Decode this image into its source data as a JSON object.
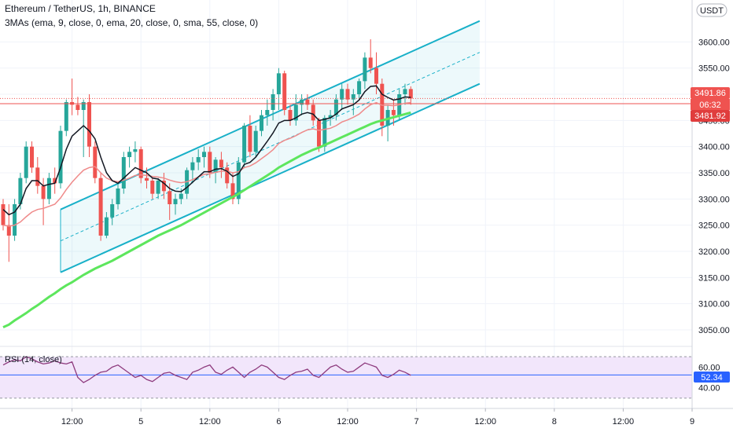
{
  "header": {
    "title": "Ethereum / TetherUS, 1h, BINANCE",
    "indicator": "3MAs (ema, 9, close, 0, ema, 20, close, 0, sma, 55, close, 0)"
  },
  "rsi_panel": {
    "label": "RSI (14, close)",
    "current_value": "52.34"
  },
  "price_badges": {
    "last_price": "3491.86",
    "countdown": "06:32",
    "ref_price": "3481.92",
    "currency": "USDT"
  },
  "colors": {
    "up": "#26a69a",
    "down": "#ef5350",
    "ema9": "#131722",
    "ema20": "#ef8a8a",
    "sma55": "#5de65d",
    "channel": "#18b0c8",
    "rsi_line": "#8e3b7e",
    "rsi_band": "#f2e6fb"
  },
  "chart_data": {
    "type": "candlestick",
    "ylim": [
      3020,
      3680
    ],
    "price_ticks": [
      3050,
      3100,
      3150,
      3200,
      3250,
      3300,
      3350,
      3400,
      3450,
      3500,
      3550,
      3600
    ],
    "price_tick_labels": [
      "3050.00",
      "3100.00",
      "3150.00",
      "3200.00",
      "3250.00",
      "3300.00",
      "3350.00",
      "3400.00",
      "3450.00",
      "3500.00",
      "3550.00",
      "3600.00"
    ],
    "time_labels": [
      {
        "label": "12:00",
        "candle": 12
      },
      {
        "label": "5",
        "candle": 24
      },
      {
        "label": "12:00",
        "candle": 36
      },
      {
        "label": "6",
        "candle": 48
      },
      {
        "label": "12:00",
        "candle": 60
      },
      {
        "label": "7",
        "candle": 72
      },
      {
        "label": "12:00",
        "candle": 84
      },
      {
        "label": "8",
        "candle": 96
      },
      {
        "label": "12:00",
        "candle": 108
      },
      {
        "label": "9",
        "candle": 120
      }
    ],
    "last_price": 3491.86,
    "ref_price": 3481.92,
    "candles": [
      [
        3290,
        3300,
        3240,
        3250
      ],
      [
        3250,
        3290,
        3180,
        3230
      ],
      [
        3230,
        3300,
        3220,
        3290
      ],
      [
        3290,
        3350,
        3280,
        3340
      ],
      [
        3340,
        3410,
        3330,
        3400
      ],
      [
        3400,
        3410,
        3350,
        3360
      ],
      [
        3360,
        3380,
        3310,
        3325
      ],
      [
        3325,
        3340,
        3250,
        3300
      ],
      [
        3300,
        3350,
        3290,
        3340
      ],
      [
        3340,
        3360,
        3310,
        3330
      ],
      [
        3330,
        3440,
        3320,
        3430
      ],
      [
        3430,
        3490,
        3420,
        3485
      ],
      [
        3485,
        3530,
        3460,
        3480
      ],
      [
        3480,
        3495,
        3460,
        3470
      ],
      [
        3470,
        3490,
        3380,
        3485
      ],
      [
        3485,
        3500,
        3380,
        3400
      ],
      [
        3400,
        3410,
        3330,
        3340
      ],
      [
        3340,
        3350,
        3220,
        3230
      ],
      [
        3230,
        3275,
        3225,
        3265
      ],
      [
        3265,
        3300,
        3250,
        3290
      ],
      [
        3290,
        3330,
        3280,
        3320
      ],
      [
        3320,
        3390,
        3310,
        3380
      ],
      [
        3380,
        3400,
        3360,
        3390
      ],
      [
        3390,
        3410,
        3370,
        3395
      ],
      [
        3395,
        3400,
        3330,
        3340
      ],
      [
        3340,
        3360,
        3320,
        3335
      ],
      [
        3335,
        3340,
        3300,
        3310
      ],
      [
        3310,
        3340,
        3300,
        3335
      ],
      [
        3335,
        3350,
        3300,
        3315
      ],
      [
        3315,
        3330,
        3260,
        3290
      ],
      [
        3290,
        3310,
        3270,
        3300
      ],
      [
        3300,
        3320,
        3290,
        3310
      ],
      [
        3310,
        3360,
        3300,
        3355
      ],
      [
        3355,
        3380,
        3330,
        3370
      ],
      [
        3370,
        3395,
        3355,
        3380
      ],
      [
        3380,
        3400,
        3360,
        3390
      ],
      [
        3390,
        3400,
        3340,
        3350
      ],
      [
        3350,
        3380,
        3330,
        3375
      ],
      [
        3375,
        3390,
        3340,
        3360
      ],
      [
        3360,
        3370,
        3320,
        3330
      ],
      [
        3330,
        3350,
        3290,
        3300
      ],
      [
        3300,
        3380,
        3290,
        3370
      ],
      [
        3370,
        3445,
        3360,
        3440
      ],
      [
        3440,
        3460,
        3380,
        3390
      ],
      [
        3390,
        3440,
        3380,
        3430
      ],
      [
        3430,
        3470,
        3420,
        3460
      ],
      [
        3460,
        3490,
        3440,
        3470
      ],
      [
        3470,
        3510,
        3450,
        3500
      ],
      [
        3500,
        3550,
        3470,
        3540
      ],
      [
        3540,
        3545,
        3460,
        3470
      ],
      [
        3470,
        3480,
        3440,
        3450
      ],
      [
        3450,
        3500,
        3440,
        3480
      ],
      [
        3480,
        3500,
        3460,
        3490
      ],
      [
        3490,
        3500,
        3470,
        3480
      ],
      [
        3480,
        3490,
        3440,
        3450
      ],
      [
        3450,
        3455,
        3390,
        3400
      ],
      [
        3400,
        3460,
        3390,
        3455
      ],
      [
        3455,
        3470,
        3440,
        3460
      ],
      [
        3460,
        3500,
        3450,
        3490
      ],
      [
        3490,
        3520,
        3470,
        3510
      ],
      [
        3510,
        3520,
        3480,
        3490
      ],
      [
        3490,
        3510,
        3460,
        3500
      ],
      [
        3500,
        3530,
        3490,
        3525
      ],
      [
        3525,
        3580,
        3510,
        3570
      ],
      [
        3570,
        3605,
        3540,
        3550
      ],
      [
        3550,
        3580,
        3500,
        3520
      ],
      [
        3520,
        3530,
        3420,
        3440
      ],
      [
        3440,
        3480,
        3410,
        3470
      ],
      [
        3470,
        3490,
        3440,
        3460
      ],
      [
        3460,
        3510,
        3450,
        3500
      ],
      [
        3500,
        3520,
        3480,
        3510
      ],
      [
        3510,
        3515,
        3480,
        3492
      ]
    ],
    "ema9": [
      3280,
      3270,
      3275,
      3290,
      3320,
      3335,
      3335,
      3325,
      3328,
      3330,
      3360,
      3395,
      3420,
      3430,
      3440,
      3430,
      3415,
      3380,
      3350,
      3335,
      3330,
      3340,
      3350,
      3360,
      3355,
      3350,
      3340,
      3338,
      3330,
      3320,
      3315,
      3314,
      3322,
      3332,
      3342,
      3352,
      3352,
      3357,
      3358,
      3353,
      3343,
      3348,
      3366,
      3370,
      3380,
      3395,
      3410,
      3426,
      3445,
      3450,
      3450,
      3455,
      3462,
      3465,
      3462,
      3450,
      3452,
      3455,
      3462,
      3472,
      3476,
      3480,
      3489,
      3505,
      3515,
      3516,
      3500,
      3494,
      3489,
      3491,
      3495,
      3494
    ],
    "ema20": [
      3250,
      3248,
      3250,
      3256,
      3266,
      3275,
      3280,
      3282,
      3286,
      3290,
      3302,
      3318,
      3332,
      3344,
      3355,
      3360,
      3362,
      3350,
      3340,
      3335,
      3333,
      3336,
      3340,
      3345,
      3346,
      3345,
      3343,
      3342,
      3340,
      3336,
      3333,
      3331,
      3333,
      3337,
      3342,
      3347,
      3348,
      3351,
      3353,
      3353,
      3350,
      3352,
      3360,
      3363,
      3369,
      3377,
      3385,
      3394,
      3406,
      3412,
      3416,
      3421,
      3427,
      3432,
      3434,
      3431,
      3433,
      3435,
      3440,
      3447,
      3451,
      3456,
      3462,
      3472,
      3480,
      3484,
      3479,
      3479,
      3478,
      3480,
      3483,
      3484
    ],
    "sma55": [
      3055,
      3060,
      3068,
      3075,
      3082,
      3090,
      3097,
      3105,
      3113,
      3120,
      3128,
      3135,
      3141,
      3148,
      3155,
      3161,
      3167,
      3172,
      3177,
      3182,
      3188,
      3194,
      3200,
      3206,
      3212,
      3218,
      3224,
      3230,
      3235,
      3240,
      3245,
      3250,
      3256,
      3262,
      3268,
      3274,
      3280,
      3286,
      3292,
      3298,
      3304,
      3310,
      3317,
      3324,
      3331,
      3338,
      3345,
      3352,
      3360,
      3366,
      3372,
      3378,
      3384,
      3389,
      3394,
      3398,
      3403,
      3408,
      3413,
      3418,
      3423,
      3428,
      3433,
      3438,
      3443,
      3447,
      3450,
      3453,
      3456,
      3459,
      3462,
      3465
    ],
    "regression_channel": {
      "start_candle": 10,
      "end_candle": 83,
      "start_mid": 3220,
      "end_mid": 3580,
      "offset": 60
    },
    "rsi": {
      "ylim": [
        20,
        80
      ],
      "ticks": [
        40,
        60
      ],
      "tick_labels": [
        "40.00",
        "60.00"
      ],
      "band": [
        30,
        70
      ],
      "values": [
        62,
        65,
        67,
        66,
        70,
        68,
        65,
        63,
        64,
        66,
        64,
        63,
        65,
        50,
        45,
        48,
        52,
        55,
        56,
        60,
        62,
        58,
        54,
        50,
        52,
        48,
        46,
        50,
        54,
        55,
        52,
        50,
        48,
        55,
        57,
        60,
        62,
        55,
        53,
        57,
        60,
        55,
        50,
        55,
        58,
        62,
        60,
        55,
        50,
        48,
        52,
        55,
        56,
        58,
        52,
        50,
        55,
        60,
        62,
        58,
        55,
        56,
        60,
        64,
        62,
        60,
        52,
        50,
        53,
        57,
        55,
        52
      ]
    }
  }
}
